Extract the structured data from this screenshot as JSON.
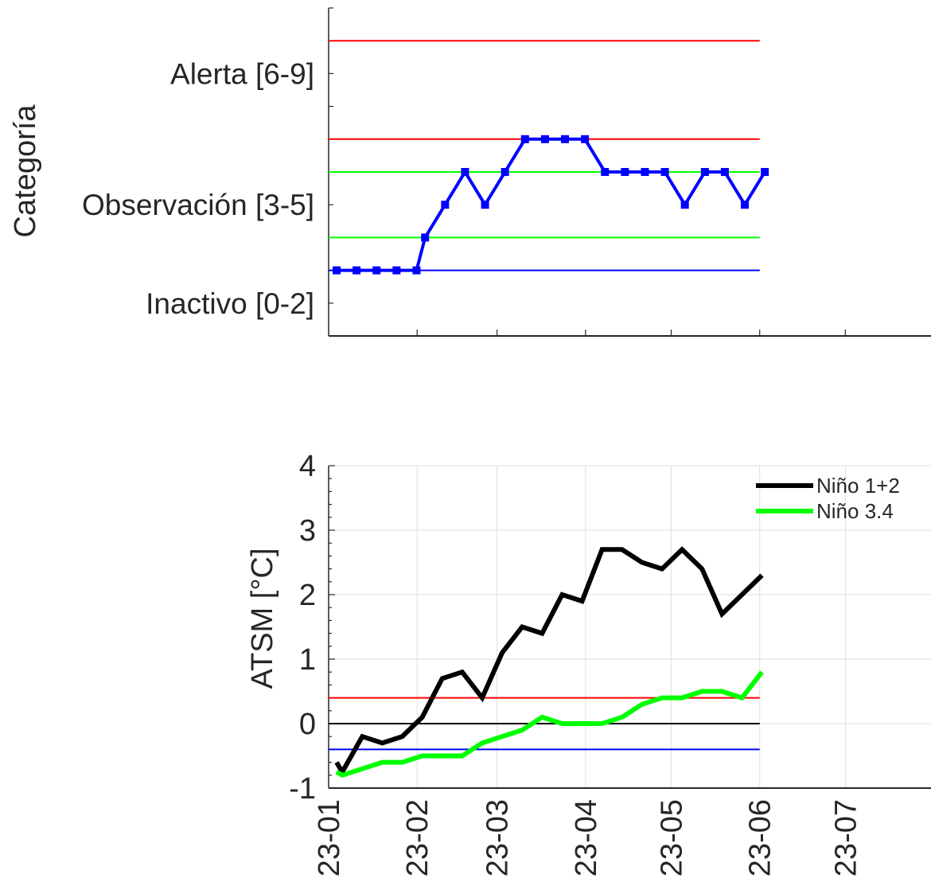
{
  "chart_data": [
    {
      "type": "line",
      "ylabel": "Categoría",
      "ylim": [
        -1,
        9
      ],
      "y_tick_labels": [
        {
          "label": "Inactivo [0-2]",
          "value": 0
        },
        {
          "label": "Observación [3-5]",
          "value": 3
        },
        {
          "label": "Alerta [6-9]",
          "value": 7
        }
      ],
      "reference_lines": [
        {
          "y": 8,
          "color": "#ff0000"
        },
        {
          "y": 5,
          "color": "#ff0000"
        },
        {
          "y": 4,
          "color": "#00ff00"
        },
        {
          "y": 2,
          "color": "#00ff00"
        },
        {
          "y": 1,
          "color": "#0000ff"
        }
      ],
      "series": [
        {
          "color": "#0000ff",
          "points": [
            [
              "2023-01-01",
              1
            ],
            [
              "2023-01-08",
              1
            ],
            [
              "2023-01-15",
              1
            ],
            [
              "2023-01-22",
              1
            ],
            [
              "2023-01-29",
              1
            ],
            [
              "2023-02-01",
              2
            ],
            [
              "2023-02-08",
              3
            ],
            [
              "2023-02-15",
              4
            ],
            [
              "2023-02-22",
              3
            ],
            [
              "2023-03-01",
              4
            ],
            [
              "2023-03-08",
              5
            ],
            [
              "2023-03-15",
              5
            ],
            [
              "2023-03-22",
              5
            ],
            [
              "2023-03-29",
              5
            ],
            [
              "2023-04-05",
              4
            ],
            [
              "2023-04-12",
              4
            ],
            [
              "2023-04-19",
              4
            ],
            [
              "2023-04-26",
              4
            ],
            [
              "2023-05-03",
              3
            ],
            [
              "2023-05-10",
              4
            ],
            [
              "2023-05-17",
              4
            ],
            [
              "2023-05-24",
              3
            ],
            [
              "2023-05-31",
              4
            ]
          ]
        }
      ]
    },
    {
      "type": "line",
      "ylabel": "ATSM [°C]",
      "ylim": [
        -1,
        4
      ],
      "yticks": [
        -1,
        0,
        1,
        2,
        3,
        4
      ],
      "grid": true,
      "legend": "top-right",
      "x_tick_labels": [
        "23-01",
        "23-02",
        "23-03",
        "23-04",
        "23-05",
        "23-06",
        "23-07"
      ],
      "x_tick_dates": [
        "2023-01-01",
        "2023-02-01",
        "2023-03-01",
        "2023-04-01",
        "2023-05-01",
        "2023-06-01",
        "2023-07-01"
      ],
      "reference_lines": [
        {
          "y": 0.4,
          "color": "#ff0000"
        },
        {
          "y": 0,
          "color": "#000000"
        },
        {
          "y": -0.4,
          "color": "#0000ff"
        }
      ],
      "series": [
        {
          "name": "Niño 1+2",
          "color": "#000000",
          "points": [
            [
              "2023-01-01",
              -0.6
            ],
            [
              "2023-01-03",
              -0.75
            ],
            [
              "2023-01-10",
              -0.2
            ],
            [
              "2023-01-17",
              -0.3
            ],
            [
              "2023-01-24",
              -0.2
            ],
            [
              "2023-01-31",
              0.1
            ],
            [
              "2023-02-07",
              0.7
            ],
            [
              "2023-02-14",
              0.8
            ],
            [
              "2023-02-21",
              0.4
            ],
            [
              "2023-02-28",
              1.1
            ],
            [
              "2023-03-07",
              1.5
            ],
            [
              "2023-03-14",
              1.4
            ],
            [
              "2023-03-21",
              2.0
            ],
            [
              "2023-03-28",
              1.9
            ],
            [
              "2023-04-04",
              2.7
            ],
            [
              "2023-04-11",
              2.7
            ],
            [
              "2023-04-18",
              2.5
            ],
            [
              "2023-04-25",
              2.4
            ],
            [
              "2023-05-02",
              2.7
            ],
            [
              "2023-05-09",
              2.4
            ],
            [
              "2023-05-16",
              1.7
            ],
            [
              "2023-05-30",
              2.3
            ]
          ]
        },
        {
          "name": "Niño 3.4",
          "color": "#00ff00",
          "points": [
            [
              "2023-01-01",
              -0.75
            ],
            [
              "2023-01-03",
              -0.8
            ],
            [
              "2023-01-10",
              -0.7
            ],
            [
              "2023-01-17",
              -0.6
            ],
            [
              "2023-01-24",
              -0.6
            ],
            [
              "2023-01-31",
              -0.5
            ],
            [
              "2023-02-07",
              -0.5
            ],
            [
              "2023-02-14",
              -0.5
            ],
            [
              "2023-02-21",
              -0.3
            ],
            [
              "2023-02-28",
              -0.2
            ],
            [
              "2023-03-07",
              -0.1
            ],
            [
              "2023-03-14",
              0.1
            ],
            [
              "2023-03-21",
              0.0
            ],
            [
              "2023-03-28",
              0.0
            ],
            [
              "2023-04-04",
              0.0
            ],
            [
              "2023-04-11",
              0.1
            ],
            [
              "2023-04-18",
              0.3
            ],
            [
              "2023-04-25",
              0.4
            ],
            [
              "2023-05-02",
              0.4
            ],
            [
              "2023-05-09",
              0.5
            ],
            [
              "2023-05-16",
              0.5
            ],
            [
              "2023-05-23",
              0.4
            ],
            [
              "2023-05-30",
              0.8
            ]
          ]
        }
      ]
    }
  ]
}
